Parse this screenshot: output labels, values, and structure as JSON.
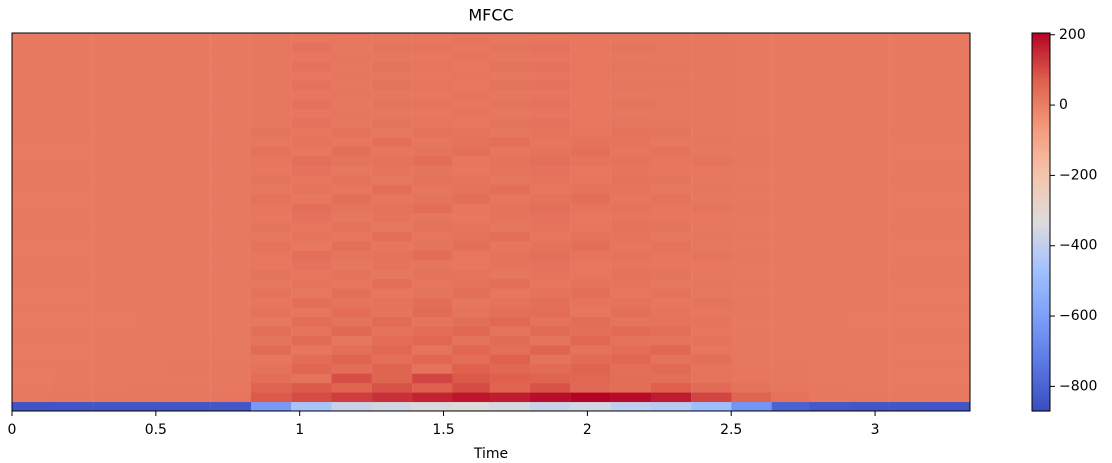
{
  "chart_data": {
    "type": "heatmap",
    "title": "MFCC",
    "xlabel": "Time",
    "colormap": "coolwarm",
    "xlim": [
      0,
      3.33
    ],
    "xticks": [
      0,
      0.5,
      1,
      1.5,
      2,
      2.5,
      3
    ],
    "clim": [
      -870,
      205
    ],
    "cticks": [
      200,
      0,
      {
        "value": -200,
        "label": "−200"
      },
      {
        "value": -400,
        "label": "−400"
      },
      {
        "value": -600,
        "label": "−600"
      },
      {
        "value": -800,
        "label": "−800"
      }
    ],
    "x": [
      0.07,
      0.21,
      0.35,
      0.49,
      0.62,
      0.76,
      0.9,
      1.04,
      1.18,
      1.32,
      1.46,
      1.6,
      1.73,
      1.87,
      2.01,
      2.15,
      2.29,
      2.43,
      2.57,
      2.71,
      2.84,
      2.98,
      3.12,
      3.26
    ],
    "z": [
      [
        -845,
        -842,
        -840,
        -838,
        -840,
        -835,
        -620,
        -450,
        -380,
        -360,
        -340,
        -330,
        -350,
        -380,
        -360,
        -400,
        -420,
        -480,
        -640,
        -800,
        -830,
        -838,
        -840,
        -842
      ],
      [
        12,
        14,
        15,
        16,
        18,
        22,
        80,
        100,
        120,
        140,
        160,
        180,
        170,
        190,
        205,
        195,
        170,
        110,
        60,
        30,
        18,
        15,
        12,
        12
      ],
      [
        10,
        12,
        12,
        14,
        15,
        18,
        60,
        80,
        60,
        90,
        70,
        100,
        60,
        90,
        50,
        40,
        70,
        45,
        30,
        20,
        14,
        12,
        10,
        10
      ],
      [
        8,
        10,
        10,
        12,
        12,
        14,
        40,
        30,
        95,
        60,
        110,
        80,
        70,
        60,
        55,
        40,
        35,
        30,
        20,
        14,
        12,
        10,
        8,
        8
      ],
      [
        10,
        10,
        12,
        12,
        14,
        14,
        30,
        55,
        40,
        60,
        30,
        70,
        50,
        45,
        60,
        35,
        45,
        25,
        20,
        15,
        12,
        10,
        10,
        10
      ],
      [
        10,
        10,
        10,
        12,
        12,
        12,
        20,
        40,
        60,
        35,
        55,
        40,
        65,
        30,
        45,
        50,
        30,
        35,
        15,
        12,
        12,
        10,
        10,
        10
      ],
      [
        8,
        8,
        10,
        10,
        10,
        12,
        45,
        20,
        35,
        50,
        25,
        55,
        35,
        60,
        30,
        40,
        50,
        20,
        18,
        12,
        10,
        10,
        8,
        8
      ],
      [
        10,
        10,
        10,
        10,
        12,
        12,
        25,
        45,
        20,
        40,
        55,
        30,
        45,
        25,
        55,
        30,
        25,
        30,
        15,
        12,
        10,
        10,
        10,
        10
      ],
      [
        10,
        10,
        10,
        10,
        10,
        12,
        35,
        25,
        50,
        30,
        40,
        50,
        25,
        45,
        35,
        45,
        35,
        20,
        15,
        12,
        10,
        10,
        10,
        10
      ],
      [
        8,
        8,
        8,
        10,
        10,
        10,
        15,
        40,
        30,
        45,
        25,
        35,
        50,
        30,
        40,
        25,
        30,
        25,
        12,
        10,
        10,
        8,
        8,
        8
      ],
      [
        10,
        10,
        10,
        10,
        10,
        12,
        30,
        20,
        40,
        25,
        45,
        25,
        35,
        40,
        20,
        35,
        25,
        20,
        14,
        12,
        10,
        10,
        10,
        10
      ],
      [
        10,
        10,
        10,
        10,
        10,
        10,
        20,
        35,
        25,
        30,
        40,
        20,
        30,
        35,
        25,
        30,
        20,
        25,
        15,
        12,
        10,
        10,
        10,
        10
      ],
      [
        8,
        8,
        10,
        10,
        10,
        10,
        30,
        15,
        35,
        20,
        25,
        35,
        20,
        30,
        35,
        20,
        30,
        15,
        12,
        10,
        10,
        10,
        8,
        8
      ],
      [
        10,
        10,
        10,
        10,
        10,
        12,
        15,
        25,
        20,
        35,
        20,
        30,
        35,
        20,
        30,
        25,
        15,
        20,
        14,
        12,
        10,
        10,
        10,
        10
      ],
      [
        12,
        12,
        10,
        10,
        10,
        10,
        25,
        20,
        30,
        15,
        30,
        25,
        20,
        25,
        20,
        30,
        25,
        15,
        12,
        10,
        10,
        10,
        12,
        12
      ],
      [
        10,
        10,
        10,
        10,
        10,
        10,
        18,
        28,
        15,
        25,
        22,
        18,
        25,
        28,
        18,
        22,
        20,
        18,
        12,
        10,
        10,
        10,
        10,
        10
      ],
      [
        10,
        10,
        10,
        10,
        10,
        10,
        20,
        35,
        25,
        30,
        40,
        20,
        30,
        35,
        25,
        30,
        20,
        25,
        15,
        12,
        10,
        10,
        10,
        10
      ],
      [
        8,
        8,
        10,
        10,
        10,
        10,
        30,
        15,
        35,
        20,
        25,
        35,
        20,
        30,
        35,
        20,
        30,
        15,
        12,
        10,
        10,
        10,
        8,
        8
      ],
      [
        10,
        10,
        10,
        10,
        10,
        12,
        15,
        25,
        20,
        35,
        20,
        30,
        35,
        20,
        30,
        25,
        15,
        20,
        14,
        12,
        10,
        10,
        10,
        10
      ],
      [
        12,
        12,
        10,
        10,
        10,
        10,
        25,
        20,
        30,
        15,
        30,
        25,
        20,
        25,
        20,
        30,
        25,
        15,
        12,
        10,
        10,
        10,
        12,
        12
      ],
      [
        10,
        10,
        10,
        10,
        10,
        10,
        18,
        28,
        15,
        25,
        22,
        18,
        25,
        28,
        18,
        22,
        20,
        18,
        12,
        10,
        10,
        10,
        10,
        10
      ],
      [
        10,
        10,
        10,
        10,
        10,
        10,
        20,
        35,
        25,
        30,
        40,
        20,
        30,
        35,
        25,
        30,
        20,
        25,
        15,
        12,
        10,
        10,
        10,
        10
      ],
      [
        8,
        8,
        10,
        10,
        10,
        10,
        30,
        15,
        35,
        20,
        25,
        35,
        20,
        30,
        35,
        20,
        30,
        15,
        12,
        10,
        10,
        10,
        8,
        8
      ],
      [
        10,
        10,
        10,
        10,
        10,
        12,
        15,
        25,
        20,
        35,
        20,
        30,
        35,
        20,
        30,
        25,
        15,
        20,
        14,
        12,
        10,
        10,
        10,
        10
      ],
      [
        12,
        12,
        10,
        10,
        10,
        10,
        25,
        20,
        30,
        15,
        30,
        25,
        20,
        25,
        20,
        30,
        25,
        15,
        12,
        10,
        10,
        10,
        12,
        12
      ],
      [
        10,
        10,
        10,
        10,
        10,
        10,
        18,
        28,
        15,
        25,
        22,
        18,
        25,
        28,
        18,
        22,
        20,
        18,
        12,
        10,
        10,
        10,
        10,
        10
      ],
      [
        10,
        10,
        10,
        10,
        10,
        10,
        20,
        35,
        25,
        30,
        40,
        20,
        30,
        35,
        25,
        30,
        20,
        25,
        15,
        12,
        10,
        10,
        10,
        10
      ],
      [
        8,
        8,
        10,
        10,
        10,
        10,
        30,
        15,
        35,
        20,
        25,
        35,
        20,
        30,
        35,
        20,
        30,
        15,
        12,
        10,
        10,
        10,
        8,
        8
      ],
      [
        10,
        10,
        10,
        10,
        10,
        12,
        15,
        25,
        20,
        35,
        20,
        30,
        35,
        20,
        30,
        25,
        15,
        20,
        14,
        12,
        10,
        10,
        10,
        10
      ],
      [
        12,
        12,
        10,
        10,
        10,
        10,
        25,
        20,
        30,
        15,
        30,
        25,
        20,
        25,
        20,
        30,
        25,
        15,
        12,
        10,
        10,
        10,
        12,
        12
      ],
      [
        10,
        10,
        10,
        10,
        10,
        10,
        18,
        28,
        15,
        25,
        22,
        18,
        25,
        28,
        18,
        22,
        20,
        18,
        12,
        10,
        10,
        10,
        10,
        10
      ],
      [
        10,
        10,
        10,
        10,
        10,
        10,
        14,
        18,
        20,
        16,
        18,
        22,
        16,
        20,
        18,
        16,
        14,
        14,
        12,
        10,
        10,
        10,
        10,
        10
      ],
      [
        10,
        10,
        10,
        10,
        10,
        10,
        18,
        28,
        15,
        25,
        22,
        18,
        25,
        28,
        18,
        22,
        20,
        18,
        12,
        10,
        10,
        10,
        10,
        10
      ],
      [
        10,
        10,
        10,
        10,
        10,
        10,
        14,
        18,
        20,
        16,
        18,
        22,
        16,
        20,
        18,
        16,
        14,
        14,
        12,
        10,
        10,
        10,
        10,
        10
      ],
      [
        10,
        10,
        10,
        10,
        10,
        10,
        18,
        28,
        15,
        25,
        22,
        18,
        25,
        28,
        18,
        22,
        20,
        18,
        12,
        10,
        10,
        10,
        10,
        10
      ],
      [
        10,
        10,
        10,
        10,
        10,
        10,
        14,
        18,
        20,
        16,
        18,
        22,
        16,
        20,
        18,
        16,
        14,
        14,
        12,
        10,
        10,
        10,
        10,
        10
      ],
      [
        10,
        10,
        10,
        10,
        10,
        10,
        18,
        28,
        15,
        25,
        22,
        18,
        25,
        28,
        18,
        22,
        20,
        18,
        12,
        10,
        10,
        10,
        10,
        10
      ],
      [
        10,
        10,
        10,
        10,
        10,
        10,
        14,
        18,
        20,
        16,
        18,
        22,
        16,
        20,
        18,
        16,
        14,
        14,
        12,
        10,
        10,
        10,
        10,
        10
      ],
      [
        10,
        10,
        10,
        10,
        10,
        10,
        18,
        28,
        15,
        25,
        22,
        18,
        25,
        28,
        18,
        22,
        20,
        18,
        12,
        10,
        10,
        10,
        10,
        10
      ],
      [
        10,
        10,
        10,
        10,
        10,
        10,
        14,
        18,
        20,
        16,
        18,
        22,
        16,
        20,
        18,
        16,
        14,
        14,
        12,
        10,
        10,
        10,
        10,
        10
      ]
    ]
  }
}
